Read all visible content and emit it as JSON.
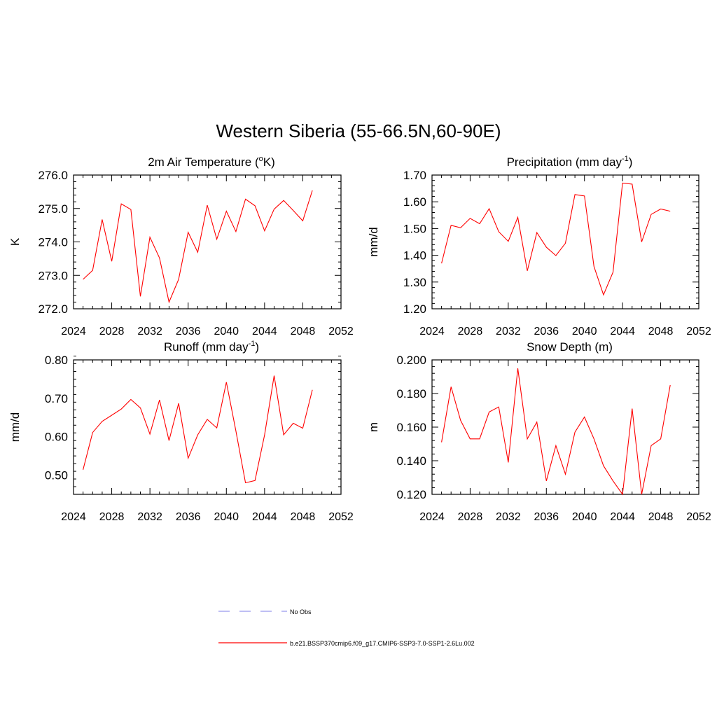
{
  "figure": {
    "title": "Western Siberia (55-66.5N,60-90E)"
  },
  "legend": [
    {
      "label": "No Obs",
      "color": "#9999ee",
      "dash": true
    },
    {
      "label": "b.e21.BSSP370cmip6.f09_g17.CMIP6-SSP3-7.0-SSP1-2.6Lu.002",
      "color": "#ff0000",
      "dash": false
    }
  ],
  "chart_data": [
    {
      "type": "line",
      "title": "2m Air Temperature (",
      "title_sup": "o",
      "title_tail": "K)",
      "ylabel": "K",
      "xlim": [
        2024,
        2052
      ],
      "xticks": [
        2024,
        2028,
        2032,
        2036,
        2040,
        2044,
        2048,
        2052
      ],
      "ylim": [
        272.0,
        276.0
      ],
      "yticks": [
        "272.0",
        "273.0",
        "274.0",
        "275.0",
        "276.0"
      ],
      "ytick_values": [
        272.0,
        273.0,
        274.0,
        275.0,
        276.0
      ],
      "x": [
        2025,
        2026,
        2027,
        2028,
        2029,
        2030,
        2031,
        2032,
        2033,
        2034,
        2035,
        2036,
        2037,
        2038,
        2039,
        2040,
        2041,
        2042,
        2043,
        2044,
        2045,
        2046,
        2047,
        2048,
        2049
      ],
      "series": [
        {
          "color": "#ff0000",
          "values": [
            272.88,
            273.15,
            274.67,
            273.42,
            275.14,
            274.97,
            272.37,
            274.14,
            273.52,
            272.2,
            272.88,
            274.29,
            273.69,
            275.1,
            274.08,
            274.92,
            274.31,
            275.28,
            275.08,
            274.33,
            274.98,
            275.24,
            274.94,
            274.63,
            275.54
          ]
        }
      ]
    },
    {
      "type": "line",
      "title": "Precipitation (mm day",
      "title_sup": "-1",
      "title_tail": ")",
      "ylabel": "mm/d",
      "xlim": [
        2024,
        2052
      ],
      "xticks": [
        2024,
        2028,
        2032,
        2036,
        2040,
        2044,
        2048,
        2052
      ],
      "ylim": [
        1.2,
        1.7
      ],
      "yticks": [
        "1.20",
        "1.30",
        "1.40",
        "1.50",
        "1.60",
        "1.70"
      ],
      "ytick_values": [
        1.2,
        1.3,
        1.4,
        1.5,
        1.6,
        1.7
      ],
      "x": [
        2025,
        2026,
        2027,
        2028,
        2029,
        2030,
        2031,
        2032,
        2033,
        2034,
        2035,
        2036,
        2037,
        2038,
        2039,
        2040,
        2041,
        2042,
        2043,
        2044,
        2045,
        2046,
        2047,
        2048,
        2049
      ],
      "series": [
        {
          "color": "#ff0000",
          "values": [
            1.37,
            1.512,
            1.503,
            1.538,
            1.518,
            1.574,
            1.488,
            1.452,
            1.542,
            1.342,
            1.485,
            1.43,
            1.399,
            1.445,
            1.627,
            1.622,
            1.358,
            1.252,
            1.337,
            1.67,
            1.666,
            1.45,
            1.553,
            1.573,
            1.565
          ]
        }
      ]
    },
    {
      "type": "line",
      "title": "Runoff (mm day",
      "title_sup": "-1",
      "title_tail": ")",
      "ylabel": "mm/d",
      "xlim": [
        2024,
        2052
      ],
      "xticks": [
        2024,
        2028,
        2032,
        2036,
        2040,
        2044,
        2048,
        2052
      ],
      "ylim": [
        0.45,
        0.8
      ],
      "yticks": [
        "0.50",
        "0.60",
        "0.70",
        "0.80"
      ],
      "ytick_values": [
        0.5,
        0.6,
        0.7,
        0.8
      ],
      "x": [
        2025,
        2026,
        2027,
        2028,
        2029,
        2030,
        2031,
        2032,
        2033,
        2034,
        2035,
        2036,
        2037,
        2038,
        2039,
        2040,
        2041,
        2042,
        2043,
        2044,
        2045,
        2046,
        2047,
        2048,
        2049
      ],
      "series": [
        {
          "color": "#ff0000",
          "values": [
            0.514,
            0.611,
            0.64,
            0.656,
            0.672,
            0.697,
            0.675,
            0.607,
            0.696,
            0.59,
            0.687,
            0.544,
            0.605,
            0.645,
            0.623,
            0.742,
            0.615,
            0.48,
            0.486,
            0.605,
            0.759,
            0.605,
            0.635,
            0.622,
            0.722
          ]
        }
      ]
    },
    {
      "type": "line",
      "title": "Snow Depth (m)",
      "title_sup": "",
      "title_tail": "",
      "ylabel": "m",
      "xlim": [
        2024,
        2052
      ],
      "xticks": [
        2024,
        2028,
        2032,
        2036,
        2040,
        2044,
        2048,
        2052
      ],
      "ylim": [
        0.12,
        0.2
      ],
      "yticks": [
        "0.120",
        "0.140",
        "0.160",
        "0.180",
        "0.200"
      ],
      "ytick_values": [
        0.12,
        0.14,
        0.16,
        0.18,
        0.2
      ],
      "x": [
        2025,
        2026,
        2027,
        2028,
        2029,
        2030,
        2031,
        2032,
        2033,
        2034,
        2035,
        2036,
        2037,
        2038,
        2039,
        2040,
        2041,
        2042,
        2043,
        2044,
        2045,
        2046,
        2047,
        2048,
        2049
      ],
      "series": [
        {
          "color": "#ff0000",
          "values": [
            0.151,
            0.184,
            0.164,
            0.153,
            0.153,
            0.169,
            0.172,
            0.139,
            0.195,
            0.153,
            0.163,
            0.128,
            0.149,
            0.132,
            0.157,
            0.166,
            0.153,
            0.137,
            0.128,
            0.12,
            0.171,
            0.12,
            0.149,
            0.153,
            0.185
          ]
        }
      ]
    }
  ]
}
